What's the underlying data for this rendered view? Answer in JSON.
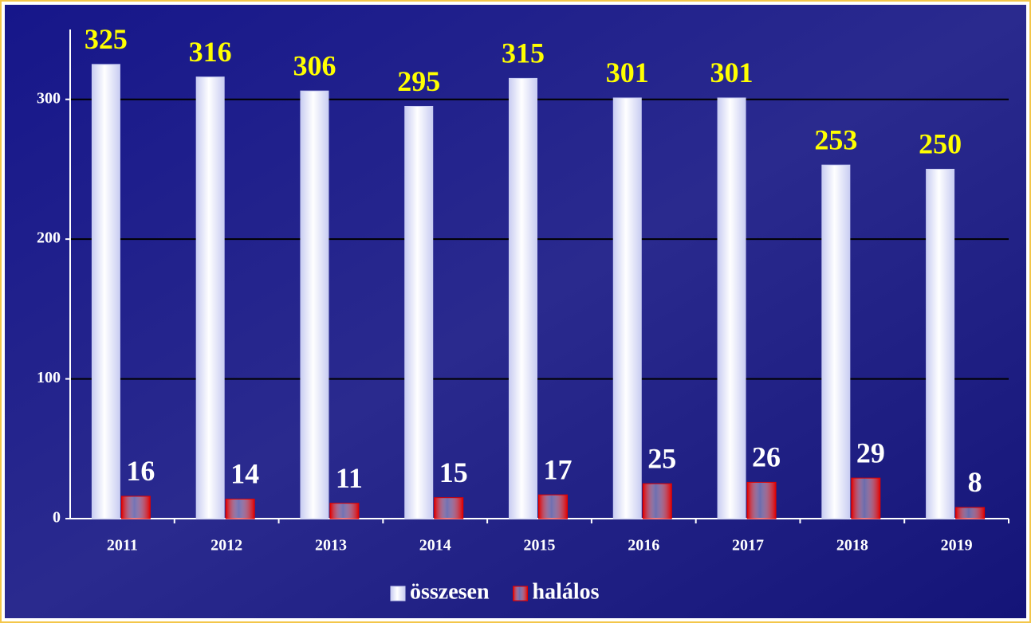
{
  "chart_data": {
    "type": "bar",
    "categories": [
      "2011",
      "2012",
      "2013",
      "2014",
      "2015",
      "2016",
      "2017",
      "2018",
      "2019"
    ],
    "series": [
      {
        "name": "összesen",
        "color": "#c9cdf2",
        "values": [
          325,
          316,
          306,
          295,
          315,
          301,
          301,
          253,
          250
        ]
      },
      {
        "name": "halálos",
        "color": "#e00000",
        "values": [
          16,
          14,
          11,
          15,
          17,
          25,
          26,
          29,
          8
        ]
      }
    ],
    "ylim": [
      0,
      350
    ],
    "yticks": [
      0,
      100,
      200,
      300
    ],
    "grid": true,
    "legend": "bottom"
  }
}
